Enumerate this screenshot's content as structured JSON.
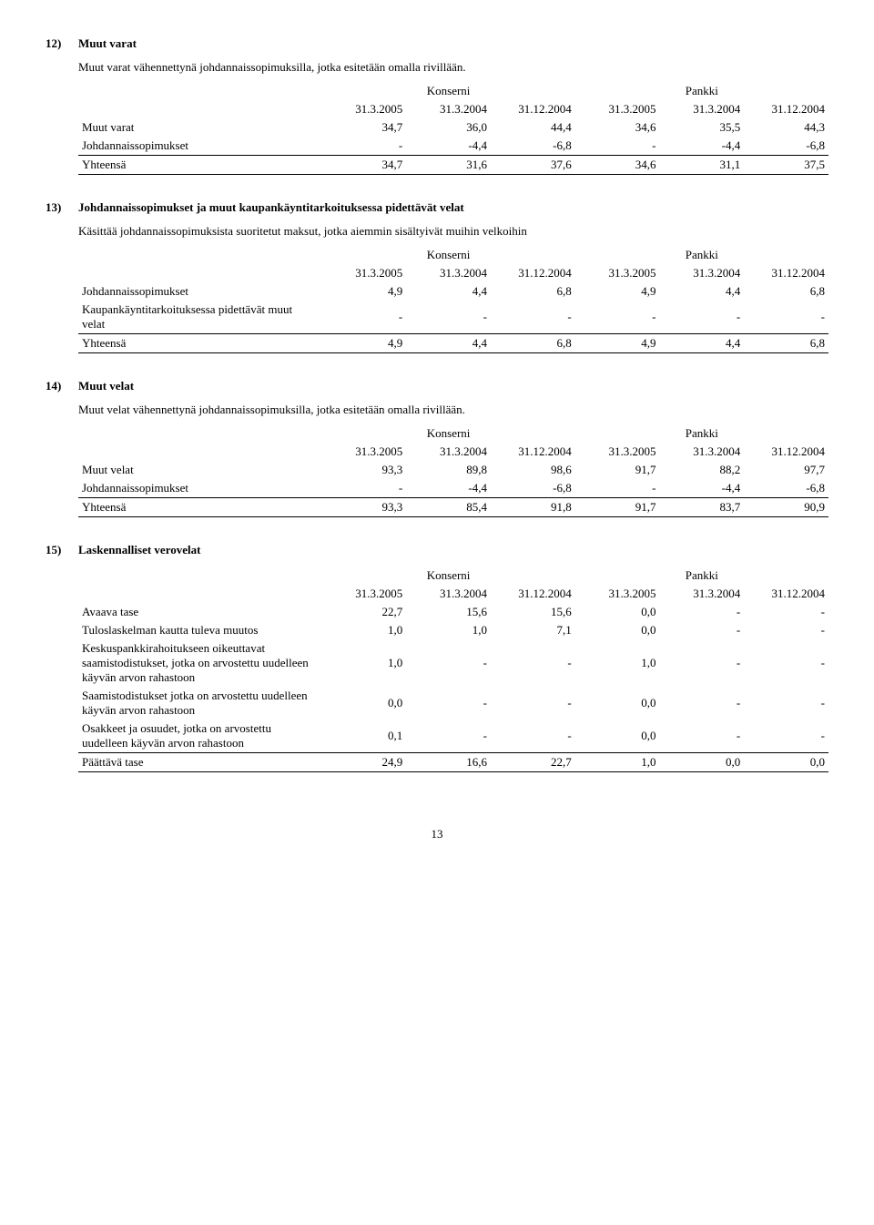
{
  "sections": {
    "s12": {
      "num": "12)",
      "title": "Muut varat",
      "subtext": "Muut varat vähennettynä johdannaissopimuksilla, jotka esitetään omalla rivillään.",
      "group_headers": [
        "Konserni",
        "Pankki"
      ],
      "col_headers": [
        "31.3.2005",
        "31.3.2004",
        "31.12.2004",
        "31.3.2005",
        "31.3.2004",
        "31.12.2004"
      ],
      "rows": [
        {
          "label": "Muut varat",
          "vals": [
            "34,7",
            "36,0",
            "44,4",
            "34,6",
            "35,5",
            "44,3"
          ]
        },
        {
          "label": "Johdannaissopimukset",
          "vals": [
            "-",
            "-4,4",
            "-6,8",
            "-",
            "-4,4",
            "-6,8"
          ]
        }
      ],
      "total": {
        "label": "Yhteensä",
        "vals": [
          "34,7",
          "31,6",
          "37,6",
          "34,6",
          "31,1",
          "37,5"
        ]
      }
    },
    "s13": {
      "num": "13)",
      "title": "Johdannaissopimukset ja muut kaupankäyntitarkoituksessa pidettävät velat",
      "subtext": "Käsittää johdannaissopimuksista suoritetut maksut, jotka aiemmin sisältyivät muihin velkoihin",
      "group_headers": [
        "Konserni",
        "Pankki"
      ],
      "col_headers": [
        "31.3.2005",
        "31.3.2004",
        "31.12.2004",
        "31.3.2005",
        "31.3.2004",
        "31.12.2004"
      ],
      "rows": [
        {
          "label": "Johdannaissopimukset",
          "vals": [
            "4,9",
            "4,4",
            "6,8",
            "4,9",
            "4,4",
            "6,8"
          ]
        },
        {
          "label": "Kaupankäyntitarkoituksessa pidettävät muut velat",
          "vals": [
            "-",
            "-",
            "-",
            "-",
            "-",
            "-"
          ]
        }
      ],
      "total": {
        "label": "Yhteensä",
        "vals": [
          "4,9",
          "4,4",
          "6,8",
          "4,9",
          "4,4",
          "6,8"
        ]
      }
    },
    "s14": {
      "num": "14)",
      "title": "Muut velat",
      "subtext": "Muut velat vähennettynä johdannaissopimuksilla, jotka esitetään omalla rivillään.",
      "group_headers": [
        "Konserni",
        "Pankki"
      ],
      "col_headers": [
        "31.3.2005",
        "31.3.2004",
        "31.12.2004",
        "31.3.2005",
        "31.3.2004",
        "31.12.2004"
      ],
      "rows": [
        {
          "label": "Muut velat",
          "vals": [
            "93,3",
            "89,8",
            "98,6",
            "91,7",
            "88,2",
            "97,7"
          ]
        },
        {
          "label": "Johdannaissopimukset",
          "vals": [
            "-",
            "-4,4",
            "-6,8",
            "-",
            "-4,4",
            "-6,8"
          ]
        }
      ],
      "total": {
        "label": "Yhteensä",
        "vals": [
          "93,3",
          "85,4",
          "91,8",
          "91,7",
          "83,7",
          "90,9"
        ]
      }
    },
    "s15": {
      "num": "15)",
      "title": "Laskennalliset verovelat",
      "group_headers": [
        "Konserni",
        "Pankki"
      ],
      "col_headers": [
        "31.3.2005",
        "31.3.2004",
        "31.12.2004",
        "31.3.2005",
        "31.3.2004",
        "31.12.2004"
      ],
      "rows": [
        {
          "label": "Avaava tase",
          "vals": [
            "22,7",
            "15,6",
            "15,6",
            "0,0",
            "-",
            "-"
          ]
        },
        {
          "label": "Tuloslaskelman kautta tuleva muutos",
          "vals": [
            "1,0",
            "1,0",
            "7,1",
            "0,0",
            "-",
            "-"
          ]
        },
        {
          "label": "Keskuspankkirahoitukseen oikeuttavat saamistodistukset, jotka on arvostettu uudelleen käyvän arvon rahastoon",
          "vals": [
            "1,0",
            "-",
            "-",
            "1,0",
            "-",
            "-"
          ]
        },
        {
          "label": "Saamistodistukset jotka on arvostettu uudelleen käyvän arvon rahastoon",
          "vals": [
            "0,0",
            "-",
            "-",
            "0,0",
            "-",
            "-"
          ]
        },
        {
          "label": "Osakkeet ja osuudet, jotka on arvostettu uudelleen käyvän arvon rahastoon",
          "vals": [
            "0,1",
            "-",
            "-",
            "0,0",
            "-",
            "-"
          ]
        }
      ],
      "total": {
        "label": "Päättävä tase",
        "vals": [
          "24,9",
          "16,6",
          "22,7",
          "1,0",
          "0,0",
          "0,0"
        ]
      }
    }
  },
  "page_number": "13"
}
